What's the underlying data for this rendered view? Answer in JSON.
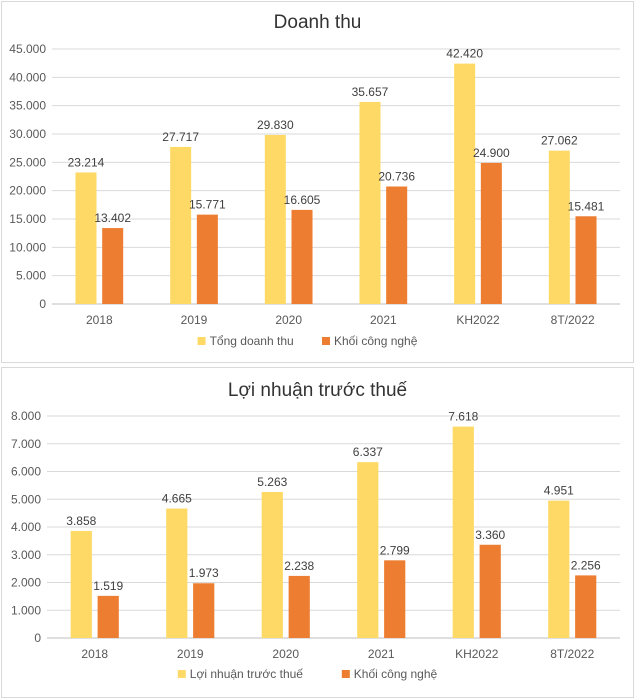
{
  "colors": {
    "total": "#FFD966",
    "tech": "#ED7D31",
    "grid": "#D9D9D9",
    "axis": "#BFBFBF"
  },
  "chart_data": [
    {
      "type": "bar",
      "title": "Doanh thu",
      "xlabel": "",
      "ylabel": "",
      "categories": [
        "2018",
        "2019",
        "2020",
        "2021",
        "KH2022",
        "8T/2022"
      ],
      "ylim": [
        0,
        45000
      ],
      "yticks": [
        0,
        5000,
        10000,
        15000,
        20000,
        25000,
        30000,
        35000,
        40000,
        45000
      ],
      "ytick_labels": [
        "0",
        "5.000",
        "10.000",
        "15.000",
        "20.000",
        "25.000",
        "30.000",
        "35.000",
        "40.000",
        "45.000"
      ],
      "grid": true,
      "legend_position": "bottom",
      "series": [
        {
          "name": "Tổng doanh thu",
          "values": [
            23214,
            27717,
            29830,
            35657,
            42420,
            27062
          ],
          "labels": [
            "23.214",
            "27.717",
            "29.830",
            "35.657",
            "42.420",
            "27.062"
          ]
        },
        {
          "name": "Khối công nghệ",
          "values": [
            13402,
            15771,
            16605,
            20736,
            24900,
            15481
          ],
          "labels": [
            "13.402",
            "15.771",
            "16.605",
            "20.736",
            "24.900",
            "15.481"
          ]
        }
      ]
    },
    {
      "type": "bar",
      "title": "Lợi nhuận trước thuế",
      "xlabel": "",
      "ylabel": "",
      "categories": [
        "2018",
        "2019",
        "2020",
        "2021",
        "KH2022",
        "8T/2022"
      ],
      "ylim": [
        0,
        8000
      ],
      "yticks": [
        0,
        1000,
        2000,
        3000,
        4000,
        5000,
        6000,
        7000,
        8000
      ],
      "ytick_labels": [
        "0",
        "1.000",
        "2.000",
        "3.000",
        "4.000",
        "5.000",
        "6.000",
        "7.000",
        "8.000"
      ],
      "grid": true,
      "legend_position": "bottom",
      "series": [
        {
          "name": "Lợi nhuận trước thuế",
          "values": [
            3858,
            4665,
            5263,
            6337,
            7618,
            4951
          ],
          "labels": [
            "3.858",
            "4.665",
            "5.263",
            "6.337",
            "7.618",
            "4.951"
          ]
        },
        {
          "name": "Khối công nghệ",
          "values": [
            1519,
            1973,
            2238,
            2799,
            3360,
            2256
          ],
          "labels": [
            "1.519",
            "1.973",
            "2.238",
            "2.799",
            "3.360",
            "2.256"
          ]
        }
      ]
    }
  ]
}
